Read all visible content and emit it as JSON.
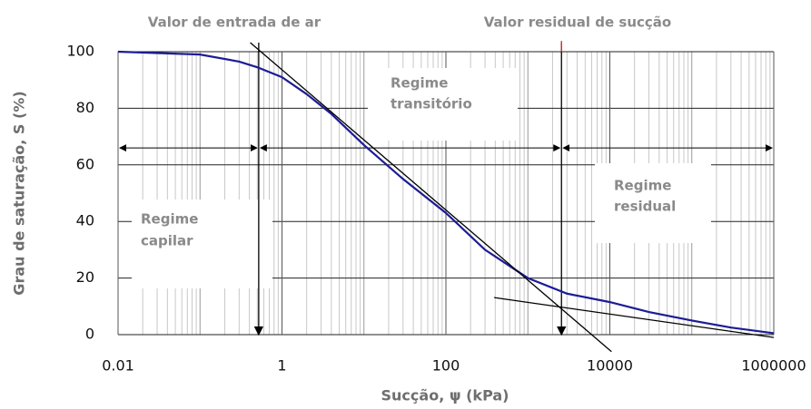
{
  "chart_data": {
    "type": "line",
    "xlabel": "Sucção, ψ (kPa)",
    "ylabel": "Grau de saturação, S (%)",
    "xscale": "log",
    "xlim": [
      0.01,
      1000000
    ],
    "xticks": [
      0.01,
      1,
      100,
      10000,
      1000000
    ],
    "ylim": [
      0,
      100
    ],
    "yticks": [
      0,
      20,
      40,
      60,
      80,
      100
    ],
    "grid": true,
    "series": [
      {
        "color": "#1c1c96",
        "x": [
          0.01,
          0.1,
          0.3,
          0.5,
          1,
          2,
          4,
          10,
          30,
          100,
          300,
          1000,
          3000,
          10000,
          30000,
          100000,
          300000,
          1000000
        ],
        "values": [
          100,
          99,
          96.5,
          94.5,
          91,
          85,
          78,
          67,
          55,
          43,
          30,
          20,
          14.5,
          11.5,
          8,
          5,
          2.5,
          0.5
        ]
      },
      {
        "color": "#000000",
        "x": [
          0.41,
          10470
        ],
        "values": [
          103.2,
          -6
        ]
      },
      {
        "color": "#000000",
        "x": [
          388,
          1000000
        ],
        "values": [
          13.1,
          -1
        ]
      }
    ],
    "markers": {
      "entry_suction": 0.52,
      "residual_suction": 2570,
      "regime_arrow_y": 66
    },
    "annotations": {
      "entry": "Valor de entrada de ar",
      "residual": "Valor residual de sucção",
      "capilar": [
        "Regime",
        "capilar"
      ],
      "transitorio": [
        "Regime",
        "transitório"
      ],
      "residual_regime": [
        "Regime",
        "residual"
      ]
    }
  }
}
